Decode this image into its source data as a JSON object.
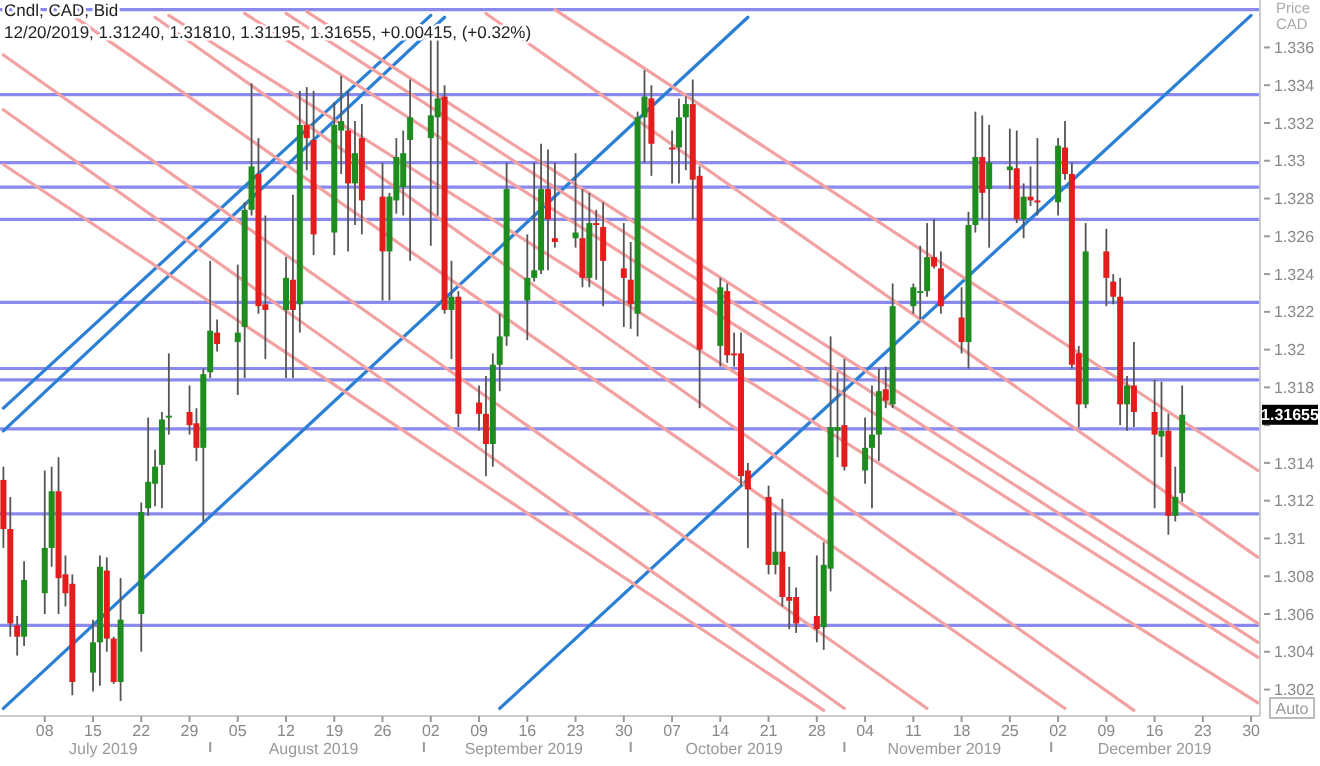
{
  "chart_data": {
    "type": "candlestick",
    "title": "Cndl, CAD, Bid",
    "subtitle": "12/20/2019, 1.31240, 1.31810, 1.31195, 1.31655, +0.00415, (+0.32%)",
    "ylabel": "Price CAD",
    "colors": [
      "#e31c1c",
      "#e31c1c",
      "#e31c1c",
      "#1e8c1e",
      "#1e8c1e",
      "#1e8c1e",
      "#e31c1c",
      "#e31c1c",
      "#e31c1c",
      "#1e8c1e",
      "#1e8c1e",
      "#e31c1c",
      "#e31c1c",
      "#1e8c1e",
      "#1e8c1e",
      "#1e8c1e",
      "#1e8c1e",
      "#1e8c1e",
      "#1e8c1e",
      "#e31c1c",
      "#e31c1c",
      "#1e8c1e",
      "#1e8c1e",
      "#e31c1c",
      "#1e8c1e",
      "#1e8c1e",
      "#1e8c1e",
      "#e31c1c",
      "#e31c1c",
      "#1e8c1e",
      "#e31c1c",
      "#1e8c1e",
      "#e31c1c",
      "#e31c1c",
      "#1e8c1e",
      "#1e8c1e",
      "#e31c1c",
      "#1e8c1e",
      "#e31c1c",
      "#e31c1c",
      "#1e8c1e",
      "#1e8c1e",
      "#1e8c1e",
      "#1e8c1e",
      "#1e8c1e",
      "#1e8c1e",
      "#e31c1c",
      "#1e8c1e",
      "#e31c1c",
      "#e31c1c",
      "#e31c1c",
      "#1e8c1e",
      "#1e8c1e",
      "#1e8c1e",
      "#1e8c1e",
      "#1e8c1e",
      "#1e8c1e",
      "#e31c1c",
      "#e31c1c",
      "#1e8c1e",
      "#e31c1c",
      "#1e8c1e",
      "#e31c1c",
      "#e31c1c",
      "#e31c1c",
      "#e31c1c",
      "#1e8c1e",
      "#1e8c1e",
      "#e31c1c",
      "#e31c1c",
      "#1e8c1e",
      "#1e8c1e",
      "#e31c1c",
      "#e31c1c",
      "#1e8c1e",
      "#e31c1c",
      "#e31c1c",
      "#e31c1c",
      "#e31c1c",
      "#e31c1c",
      "#1e8c1e",
      "#e31c1c",
      "#e31c1c",
      "#e31c1c",
      "#e31c1c",
      "#1e8c1e",
      "#1e8c1e",
      "#1e8c1e",
      "#e31c1c",
      "#1e8c1e",
      "#1e8c1e",
      "#1e8c1e",
      "#e31c1c",
      "#1e8c1e",
      "#1e8c1e",
      "#1e8c1e",
      "#1e8c1e",
      "#e31c1c",
      "#e31c1c",
      "#e31c1c",
      "#1e8c1e",
      "#1e8c1e",
      "#e31c1c",
      "#1e8c1e",
      "#1e8c1e",
      "#e31c1c",
      "#1e8c1e",
      "#e31c1c",
      "#e31c1c",
      "#1e8c1e",
      "#e31c1c",
      "#e31c1c",
      "#e31c1c",
      "#1e8c1e",
      "#e31c1c",
      "#e31c1c",
      "#e31c1c",
      "#1e8c1e",
      "#e31c1c",
      "#e31c1c",
      "#1e8c1e",
      "#e31c1c",
      "#1e8c1e",
      "#1e8c1e"
    ],
    "x": [
      "2019-07-02",
      "2019-07-03",
      "2019-07-04",
      "2019-07-05",
      "2019-07-08",
      "2019-07-09",
      "2019-07-10",
      "2019-07-11",
      "2019-07-12",
      "2019-07-15",
      "2019-07-16",
      "2019-07-17",
      "2019-07-18",
      "2019-07-19",
      "2019-07-22",
      "2019-07-23",
      "2019-07-24",
      "2019-07-25",
      "2019-07-26",
      "2019-07-29",
      "2019-07-30",
      "2019-07-31",
      "2019-08-01",
      "2019-08-02",
      "2019-08-05",
      "2019-08-06",
      "2019-08-07",
      "2019-08-08",
      "2019-08-09",
      "2019-08-12",
      "2019-08-13",
      "2019-08-14",
      "2019-08-15",
      "2019-08-16",
      "2019-08-19",
      "2019-08-20",
      "2019-08-21",
      "2019-08-22",
      "2019-08-23",
      "2019-08-26",
      "2019-08-27",
      "2019-08-28",
      "2019-08-29",
      "2019-08-30",
      "2019-09-02",
      "2019-09-03",
      "2019-09-04",
      "2019-09-05",
      "2019-09-06",
      "2019-09-09",
      "2019-09-10",
      "2019-09-11",
      "2019-09-12",
      "2019-09-13",
      "2019-09-16",
      "2019-09-17",
      "2019-09-18",
      "2019-09-19",
      "2019-09-20",
      "2019-09-23",
      "2019-09-24",
      "2019-09-25",
      "2019-09-26",
      "2019-09-27",
      "2019-09-30",
      "2019-10-01",
      "2019-10-02",
      "2019-10-03",
      "2019-10-04",
      "2019-10-07",
      "2019-10-08",
      "2019-10-09",
      "2019-10-10",
      "2019-10-11",
      "2019-10-14",
      "2019-10-15",
      "2019-10-16",
      "2019-10-17",
      "2019-10-18",
      "2019-10-21",
      "2019-10-22",
      "2019-10-23",
      "2019-10-24",
      "2019-10-25",
      "2019-10-28",
      "2019-10-29",
      "2019-10-30",
      "2019-10-31",
      "2019-11-01",
      "2019-11-04",
      "2019-11-05",
      "2019-11-06",
      "2019-11-07",
      "2019-11-08",
      "2019-11-11",
      "2019-11-12",
      "2019-11-13",
      "2019-11-14",
      "2019-11-15",
      "2019-11-18",
      "2019-11-19",
      "2019-11-20",
      "2019-11-21",
      "2019-11-22",
      "2019-11-25",
      "2019-11-26",
      "2019-11-27",
      "2019-11-28",
      "2019-11-29",
      "2019-12-02",
      "2019-12-03",
      "2019-12-04",
      "2019-12-05",
      "2019-12-06",
      "2019-12-09",
      "2019-12-10",
      "2019-12-11",
      "2019-12-12",
      "2019-12-13",
      "2019-12-16",
      "2019-12-17",
      "2019-12-18",
      "2019-12-19",
      "2019-12-20"
    ],
    "ohlc": [
      [
        1.3131,
        1.3138,
        1.3095,
        1.3105
      ],
      [
        1.3105,
        1.3122,
        1.3048,
        1.3055
      ],
      [
        1.3054,
        1.3059,
        1.3038,
        1.3048
      ],
      [
        1.3048,
        1.3088,
        1.3043,
        1.3078
      ],
      [
        1.3071,
        1.3136,
        1.306,
        1.3095
      ],
      [
        1.3095,
        1.3138,
        1.3085,
        1.3125
      ],
      [
        1.3125,
        1.3143,
        1.306,
        1.3079
      ],
      [
        1.3081,
        1.3091,
        1.3064,
        1.3071
      ],
      [
        1.3076,
        1.3081,
        1.3017,
        1.3024
      ],
      [
        1.3029,
        1.3057,
        1.3019,
        1.3045
      ],
      [
        1.3045,
        1.3091,
        1.3022,
        1.3085
      ],
      [
        1.3083,
        1.309,
        1.304,
        1.3047
      ],
      [
        1.3047,
        1.3048,
        1.3023,
        1.3024
      ],
      [
        1.3024,
        1.3079,
        1.3014,
        1.3057
      ],
      [
        1.306,
        1.3119,
        1.304,
        1.3114
      ],
      [
        1.3116,
        1.3164,
        1.3112,
        1.313
      ],
      [
        1.3129,
        1.3147,
        1.3117,
        1.3138
      ],
      [
        1.3139,
        1.3167,
        1.3116,
        1.3163
      ],
      [
        1.3164,
        1.3198,
        1.3155,
        1.3165
      ],
      [
        1.3167,
        1.3181,
        1.3155,
        1.316
      ],
      [
        1.3161,
        1.3169,
        1.3141,
        1.3148
      ],
      [
        1.3148,
        1.319,
        1.3109,
        1.3187
      ],
      [
        1.3188,
        1.3247,
        1.3185,
        1.321
      ],
      [
        1.3209,
        1.3216,
        1.3199,
        1.3203
      ],
      [
        1.3204,
        1.3245,
        1.3176,
        1.3209
      ],
      [
        1.3212,
        1.3278,
        1.3185,
        1.3274
      ],
      [
        1.3274,
        1.3341,
        1.3271,
        1.3297
      ],
      [
        1.3293,
        1.3312,
        1.3219,
        1.3223
      ],
      [
        1.3224,
        1.3271,
        1.3195,
        1.3221
      ],
      [
        1.3221,
        1.3249,
        1.3185,
        1.3238
      ],
      [
        1.3237,
        1.3282,
        1.3185,
        1.3221
      ],
      [
        1.3224,
        1.3337,
        1.3209,
        1.3319
      ],
      [
        1.3319,
        1.3339,
        1.3295,
        1.3312
      ],
      [
        1.3311,
        1.3337,
        1.325,
        1.3261
      ],
      [
        1.3262,
        1.3331,
        1.325,
        1.3319
      ],
      [
        1.3316,
        1.3345,
        1.3293,
        1.3321
      ],
      [
        1.3316,
        1.3337,
        1.3252,
        1.3288
      ],
      [
        1.3288,
        1.3321,
        1.3266,
        1.3304
      ],
      [
        1.3312,
        1.333,
        1.3261,
        1.3279
      ],
      [
        1.3281,
        1.3299,
        1.3226,
        1.3252
      ],
      [
        1.3252,
        1.3283,
        1.3226,
        1.3281
      ],
      [
        1.3279,
        1.3312,
        1.3272,
        1.3302
      ],
      [
        1.3286,
        1.3316,
        1.3271,
        1.3304
      ],
      [
        1.3311,
        1.3343,
        1.3247,
        1.3323
      ],
      [
        1.3312,
        1.3371,
        1.3255,
        1.3324
      ],
      [
        1.3323,
        1.3368,
        1.3271,
        1.3333
      ],
      [
        1.3334,
        1.334,
        1.3219,
        1.3221
      ],
      [
        1.3221,
        1.3247,
        1.3195,
        1.3228
      ],
      [
        1.3228,
        1.3231,
        1.3159,
        1.3166
      ],
      [
        1.3172,
        1.3181,
        1.3157,
        1.3166
      ],
      [
        1.3166,
        1.3186,
        1.3133,
        1.315
      ],
      [
        1.315,
        1.3198,
        1.3138,
        1.3192
      ],
      [
        1.3192,
        1.3219,
        1.3178,
        1.3207
      ],
      [
        1.3207,
        1.3299,
        1.3202,
        1.3285
      ],
      [
        1.3226,
        1.3261,
        1.3205,
        1.3238
      ],
      [
        1.3238,
        1.3299,
        1.3236,
        1.3242
      ],
      [
        1.3242,
        1.3309,
        1.324,
        1.3285
      ],
      [
        1.3285,
        1.3306,
        1.3242,
        1.3269
      ],
      [
        1.3259,
        1.3299,
        1.3254,
        1.3257
      ],
      [
        1.3259,
        1.3304,
        1.3254,
        1.3262
      ],
      [
        1.3259,
        1.3285,
        1.3233,
        1.3238
      ],
      [
        1.3238,
        1.3283,
        1.3233,
        1.3267
      ],
      [
        1.3267,
        1.3274,
        1.3237,
        1.3266
      ],
      [
        1.3265,
        1.3278,
        1.3223,
        1.3247
      ],
      [
        1.3243,
        1.3267,
        1.3212,
        1.3238
      ],
      [
        1.3237,
        1.3257,
        1.3211,
        1.3224
      ],
      [
        1.3219,
        1.3326,
        1.3207,
        1.3323
      ],
      [
        1.3323,
        1.3348,
        1.3299,
        1.3334
      ],
      [
        1.3333,
        1.334,
        1.3292,
        1.3309
      ],
      [
        1.3307,
        1.3316,
        1.3288,
        1.3306
      ],
      [
        1.3307,
        1.3333,
        1.3288,
        1.3323
      ],
      [
        1.3323,
        1.3334,
        1.3295,
        1.333
      ],
      [
        1.333,
        1.3343,
        1.3269,
        1.329
      ],
      [
        1.3292,
        1.3297,
        1.3169,
        1.32
      ],
      [
        1.3202,
        1.3238,
        1.3191,
        1.3233
      ],
      [
        1.3231,
        1.3235,
        1.3193,
        1.3197
      ],
      [
        1.3198,
        1.3209,
        1.3191,
        1.3197
      ],
      [
        1.3198,
        1.3209,
        1.3128,
        1.3133
      ],
      [
        1.3136,
        1.314,
        1.3095,
        1.3126
      ],
      [
        1.3122,
        1.3128,
        1.3081,
        1.3086
      ],
      [
        1.3086,
        1.3114,
        1.3081,
        1.3093
      ],
      [
        1.3093,
        1.3121,
        1.3064,
        1.3069
      ],
      [
        1.3069,
        1.3085,
        1.3052,
        1.3067
      ],
      [
        1.3069,
        1.3074,
        1.305,
        1.3055
      ],
      [
        1.3059,
        1.3091,
        1.3045,
        1.3052
      ],
      [
        1.3053,
        1.3098,
        1.3041,
        1.3086
      ],
      [
        1.3084,
        1.3207,
        1.3072,
        1.3159
      ],
      [
        1.3157,
        1.3188,
        1.3143,
        1.3159
      ],
      [
        1.316,
        1.3195,
        1.3136,
        1.3138
      ],
      [
        1.3136,
        1.3164,
        1.3129,
        1.3148
      ],
      [
        1.3148,
        1.3181,
        1.3116,
        1.3155
      ],
      [
        1.3155,
        1.319,
        1.3141,
        1.3178
      ],
      [
        1.3179,
        1.3191,
        1.3169,
        1.3173
      ],
      [
        1.3171,
        1.3235,
        1.3169,
        1.3223
      ],
      [
        1.3223,
        1.3235,
        1.3219,
        1.3233
      ],
      [
        1.323,
        1.3255,
        1.3216,
        1.3231
      ],
      [
        1.3231,
        1.3267,
        1.3228,
        1.3249
      ],
      [
        1.3249,
        1.3269,
        1.3243,
        1.3244
      ],
      [
        1.3243,
        1.3252,
        1.3219,
        1.3223
      ],
      [
        1.3217,
        1.3233,
        1.3198,
        1.3204
      ],
      [
        1.3204,
        1.3273,
        1.319,
        1.3266
      ],
      [
        1.3266,
        1.3326,
        1.3262,
        1.3302
      ],
      [
        1.3302,
        1.3324,
        1.3269,
        1.3283
      ],
      [
        1.3285,
        1.3319,
        1.3254,
        1.3299
      ],
      [
        1.3295,
        1.3317,
        1.3285,
        1.3297
      ],
      [
        1.3296,
        1.3316,
        1.3267,
        1.3269
      ],
      [
        1.3269,
        1.3288,
        1.3259,
        1.3281
      ],
      [
        1.3281,
        1.3297,
        1.3276,
        1.3279
      ],
      [
        1.3279,
        1.3312,
        1.3271,
        1.3278
      ],
      [
        1.3278,
        1.3312,
        1.3271,
        1.3308
      ],
      [
        1.3307,
        1.3321,
        1.329,
        1.3293
      ],
      [
        1.3293,
        1.3299,
        1.319,
        1.3192
      ],
      [
        1.3198,
        1.3202,
        1.3159,
        1.3171
      ],
      [
        1.3171,
        1.3267,
        1.3169,
        1.3252
      ],
      [
        1.3252,
        1.3264,
        1.3223,
        1.3238
      ],
      [
        1.3236,
        1.324,
        1.3224,
        1.3228
      ],
      [
        1.3228,
        1.3238,
        1.316,
        1.3171
      ],
      [
        1.3171,
        1.3186,
        1.3157,
        1.3181
      ],
      [
        1.3181,
        1.3204,
        1.3159,
        1.3167
      ],
      [
        1.3167,
        1.3184,
        1.3116,
        1.3155
      ],
      [
        1.3154,
        1.3183,
        1.3143,
        1.3157
      ],
      [
        1.3157,
        1.3166,
        1.3102,
        1.3112
      ],
      [
        1.3112,
        1.3138,
        1.3109,
        1.3122
      ],
      [
        1.3124,
        1.3181,
        1.31195,
        1.31655
      ]
    ],
    "series": [
      {
        "type": "line",
        "color": "#2a7fd6",
        "x": [
          "2019-07-02",
          "2019-10-18"
        ],
        "values": [
          1.301,
          1.3376
        ]
      },
      {
        "type": "line",
        "color": "#2a7fd6",
        "x": [
          "2019-09-12",
          "2019-12-30"
        ],
        "values": [
          1.301,
          1.3377
        ]
      },
      {
        "type": "line",
        "color": "#2a7fd6",
        "x": [
          "2019-07-02",
          "2019-09-02"
        ],
        "values": [
          1.3169,
          1.3377
        ]
      },
      {
        "type": "line",
        "color": "#2a7fd6",
        "x": [
          "2019-07-02",
          "2019-09-04"
        ],
        "values": [
          1.3157,
          1.3376
        ]
      },
      {
        "type": "line",
        "color": "#f2a2a2",
        "x": [
          "2019-09-20",
          "2019-12-31"
        ],
        "values": [
          1.338,
          1.3136
        ]
      },
      {
        "type": "line",
        "color": "#f2a2a2",
        "x": [
          "2019-09-10",
          "2019-12-31"
        ],
        "values": [
          1.3378,
          1.309
        ]
      },
      {
        "type": "line",
        "color": "#f2a2a2",
        "x": [
          "2019-08-15",
          "2019-12-31"
        ],
        "values": [
          1.3379,
          1.3055
        ]
      },
      {
        "type": "line",
        "color": "#f2a2a2",
        "x": [
          "2019-08-12",
          "2019-12-31"
        ],
        "values": [
          1.3378,
          1.3045
        ]
      },
      {
        "type": "line",
        "color": "#f2a2a2",
        "x": [
          "2019-08-06",
          "2019-12-31"
        ],
        "values": [
          1.3378,
          1.3037
        ]
      },
      {
        "type": "line",
        "color": "#f2a2a2",
        "x": [
          "2019-07-26",
          "2019-12-31"
        ],
        "values": [
          1.3377,
          1.3013
        ]
      },
      {
        "type": "line",
        "color": "#f2a2a2",
        "x": [
          "2019-07-24",
          "2019-12-13"
        ],
        "values": [
          1.3376,
          1.3009
        ]
      },
      {
        "type": "line",
        "color": "#f2a2a2",
        "x": [
          "2019-07-12",
          "2019-12-03"
        ],
        "values": [
          1.3377,
          1.301
        ]
      },
      {
        "type": "line",
        "color": "#f2a2a2",
        "x": [
          "2019-07-02",
          "2019-11-01"
        ],
        "values": [
          1.3327,
          1.301
        ]
      },
      {
        "type": "line",
        "color": "#f2a2a2",
        "x": [
          "2019-07-02",
          "2019-10-29"
        ],
        "values": [
          1.3298,
          1.3009
        ]
      },
      {
        "type": "line",
        "color": "#f2a2a2",
        "x": [
          "2019-07-02",
          "2019-11-13"
        ],
        "values": [
          1.3356,
          1.301
        ]
      }
    ],
    "ref_lines": [
      {
        "axis": "y",
        "value": 1.338,
        "color": "#8a8aee"
      },
      {
        "axis": "y",
        "value": 1.3335,
        "color": "#8a8aee"
      },
      {
        "axis": "y",
        "value": 1.3299,
        "color": "#8a8aee"
      },
      {
        "axis": "y",
        "value": 1.3286,
        "color": "#8a8aee"
      },
      {
        "axis": "y",
        "value": 1.3269,
        "color": "#8a8aee"
      },
      {
        "axis": "y",
        "value": 1.3225,
        "color": "#8a8aee"
      },
      {
        "axis": "y",
        "value": 1.319,
        "color": "#8a8aee"
      },
      {
        "axis": "y",
        "value": 1.3184,
        "color": "#8a8aee"
      },
      {
        "axis": "y",
        "value": 1.3158,
        "color": "#8a8aee"
      },
      {
        "axis": "y",
        "value": 1.3113,
        "color": "#8a8aee"
      },
      {
        "axis": "y",
        "value": 1.3054,
        "color": "#8a8aee"
      }
    ],
    "xlim": [
      "2019-07-02",
      "2019-12-31"
    ],
    "xticks": [
      {
        "value": "2019-07-08",
        "label": "08"
      },
      {
        "value": "2019-07-15",
        "label": "15"
      },
      {
        "value": "2019-07-22",
        "label": "22"
      },
      {
        "value": "2019-07-29",
        "label": "29"
      },
      {
        "value": "2019-08-05",
        "label": "05"
      },
      {
        "value": "2019-08-12",
        "label": "12"
      },
      {
        "value": "2019-08-19",
        "label": "19"
      },
      {
        "value": "2019-08-26",
        "label": "26"
      },
      {
        "value": "2019-09-02",
        "label": "02"
      },
      {
        "value": "2019-09-09",
        "label": "09"
      },
      {
        "value": "2019-09-16",
        "label": "16"
      },
      {
        "value": "2019-09-23",
        "label": "23"
      },
      {
        "value": "2019-09-30",
        "label": "30"
      },
      {
        "value": "2019-10-07",
        "label": "07"
      },
      {
        "value": "2019-10-14",
        "label": "14"
      },
      {
        "value": "2019-10-21",
        "label": "21"
      },
      {
        "value": "2019-10-28",
        "label": "28"
      },
      {
        "value": "2019-11-04",
        "label": "04"
      },
      {
        "value": "2019-11-11",
        "label": "11"
      },
      {
        "value": "2019-11-18",
        "label": "18"
      },
      {
        "value": "2019-11-25",
        "label": "25"
      },
      {
        "value": "2019-12-02",
        "label": "02"
      },
      {
        "value": "2019-12-09",
        "label": "09"
      },
      {
        "value": "2019-12-16",
        "label": "16"
      },
      {
        "value": "2019-12-23",
        "label": "23"
      },
      {
        "value": "2019-12-30",
        "label": "30"
      }
    ],
    "ylim": [
      1.3006,
      1.3383
    ],
    "yticks": [
      1.302,
      1.304,
      1.306,
      1.308,
      1.31,
      1.312,
      1.314,
      {
        "value": 1.316,
        "label": null
      },
      1.318,
      1.32,
      1.322,
      1.324,
      1.326,
      1.328,
      1.33,
      1.332,
      1.334,
      1.336
    ],
    "annotations": [
      "July 2019",
      "August 2019",
      "September 2019",
      "October 2019",
      "November 2019",
      "December 2019",
      {
        "text": "1.31655",
        "y": 1.31655
      },
      "Auto"
    ]
  }
}
